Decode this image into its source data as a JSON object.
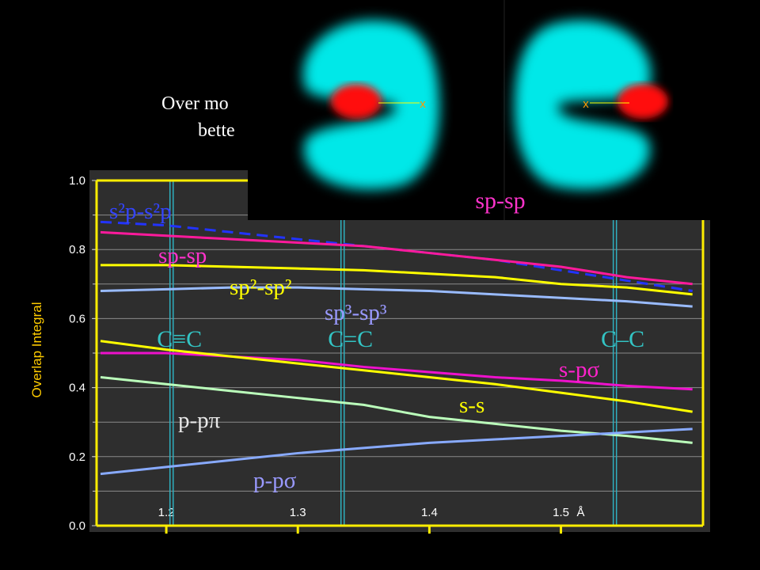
{
  "chart_data": {
    "type": "line",
    "intro_lines": [
      "Over mo",
      "bette"
    ],
    "y_label": "Overlap Integral",
    "x_unit": "Å",
    "xlim": [
      1.147,
      1.608
    ],
    "ylim": [
      0,
      1
    ],
    "xticks": [
      1.2,
      1.3,
      1.4,
      1.5
    ],
    "yticks": [
      {
        "value": 0,
        "label": "0.0"
      },
      {
        "value": 0.2,
        "label": "0.2"
      },
      {
        "value": 0.4,
        "label": "0.4"
      },
      {
        "value": 0.6,
        "label": "0.6"
      },
      {
        "value": 0.8,
        "label": "0.8"
      },
      {
        "value": 1,
        "label": "1.0"
      }
    ],
    "grid_yticks": [
      0.1,
      0.2,
      0.3,
      0.4,
      0.5,
      0.6,
      0.7,
      0.8,
      0.9
    ],
    "grid": true,
    "x": [
      1.15,
      1.2,
      1.25,
      1.3,
      1.35,
      1.4,
      1.45,
      1.5,
      1.55,
      1.6
    ],
    "series": [
      {
        "name": "s²p-s²p",
        "color": "#2233ff",
        "dashed": true,
        "values": [
          0.88,
          0.87,
          0.85,
          0.83,
          0.81,
          0.79,
          0.77,
          0.74,
          0.71,
          0.68
        ]
      },
      {
        "name": "sp-sp",
        "color": "#ff1a9c",
        "values": [
          0.85,
          0.84,
          0.83,
          0.82,
          0.81,
          0.79,
          0.77,
          0.75,
          0.72,
          0.7
        ]
      },
      {
        "name": "sp²-sp²",
        "color": "#ffff00",
        "values": [
          0.755,
          0.755,
          0.75,
          0.745,
          0.74,
          0.73,
          0.72,
          0.7,
          0.69,
          0.67
        ]
      },
      {
        "name": "sp³-sp³",
        "color": "#99bbff",
        "values": [
          0.68,
          0.685,
          0.69,
          0.69,
          0.685,
          0.68,
          0.67,
          0.66,
          0.65,
          0.635
        ]
      },
      {
        "name": "s-pσ",
        "color": "#ee11cc",
        "values": [
          0.5,
          0.5,
          0.49,
          0.48,
          0.46,
          0.445,
          0.43,
          0.42,
          0.405,
          0.395
        ]
      },
      {
        "name": "s-s",
        "color": "#ffff00",
        "values": [
          0.535,
          0.51,
          0.49,
          0.47,
          0.45,
          0.43,
          0.41,
          0.385,
          0.36,
          0.33
        ]
      },
      {
        "name": "p-pπ",
        "color": "#bbffbb",
        "values": [
          0.43,
          0.41,
          0.39,
          0.37,
          0.35,
          0.315,
          0.295,
          0.275,
          0.26,
          0.24
        ]
      },
      {
        "name": "p-pσ",
        "color": "#88aaff",
        "values": [
          0.15,
          0.17,
          0.19,
          0.21,
          0.225,
          0.24,
          0.25,
          0.26,
          0.27,
          0.28
        ]
      }
    ],
    "annotations": [
      {
        "text": "C≡C",
        "x": 1.204
      },
      {
        "text": "C=C",
        "x": 1.334
      },
      {
        "text": "C–C",
        "x": 1.541
      }
    ],
    "image": {
      "label": "sp-sp",
      "markers": [
        "x",
        "x"
      ]
    }
  }
}
